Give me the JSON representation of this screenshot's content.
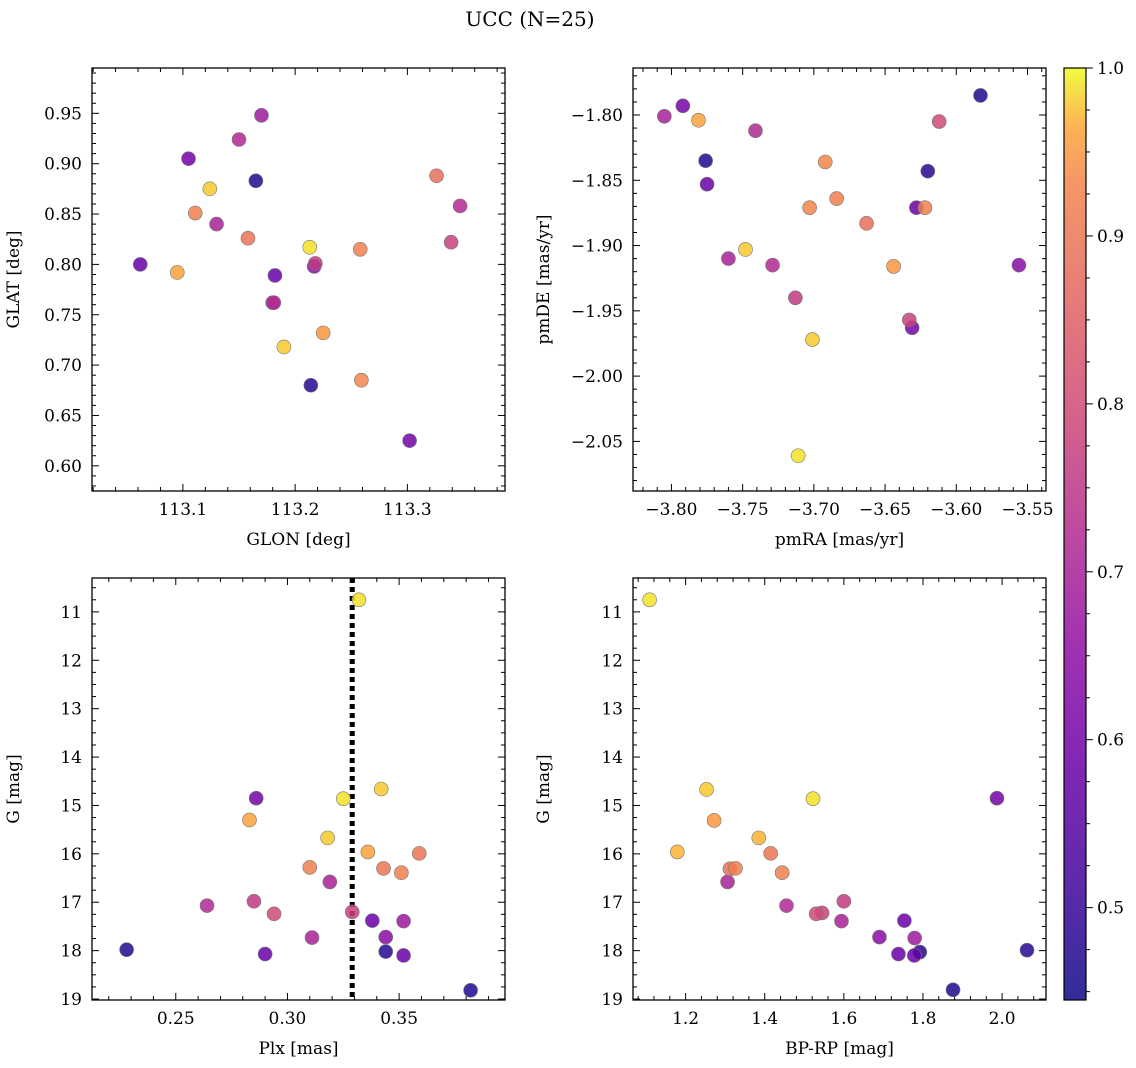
{
  "figure": {
    "title": "UCC (N=25)"
  },
  "colorbar": {
    "colormap": "plasma",
    "range": [
      0.445,
      1.0
    ],
    "ticks": [
      0.5,
      0.6,
      0.7,
      0.8,
      0.9,
      1.0
    ],
    "tick_labels": [
      "0.5",
      "0.6",
      "0.7",
      "0.8",
      "0.9",
      "1.0"
    ]
  },
  "chart_data": [
    {
      "type": "scatter",
      "name": "galactic-position",
      "xlabel": "GLON [deg]",
      "ylabel": "GLAT [deg]",
      "xlim": [
        113.019,
        113.387
      ],
      "ylim": [
        0.575,
        0.995
      ],
      "y_inverted": false,
      "xticks": [
        113.1,
        113.2,
        113.3
      ],
      "xtick_labels": [
        "113.1",
        "113.2",
        "113.3"
      ],
      "yticks": [
        0.6,
        0.65,
        0.7,
        0.75,
        0.8,
        0.85,
        0.9,
        0.95
      ],
      "ytick_labels": [
        "0.60",
        "0.65",
        "0.70",
        "0.75",
        "0.80",
        "0.85",
        "0.90",
        "0.95"
      ],
      "points": [
        {
          "x": 113.062,
          "y": 0.8,
          "c": 0.58
        },
        {
          "x": 113.095,
          "y": 0.792,
          "c": 0.96
        },
        {
          "x": 113.105,
          "y": 0.905,
          "c": 0.6
        },
        {
          "x": 113.111,
          "y": 0.851,
          "c": 0.92
        },
        {
          "x": 113.124,
          "y": 0.875,
          "c": 0.98
        },
        {
          "x": 113.13,
          "y": 0.84,
          "c": 0.7
        },
        {
          "x": 113.15,
          "y": 0.924,
          "c": 0.72
        },
        {
          "x": 113.158,
          "y": 0.826,
          "c": 0.9
        },
        {
          "x": 113.165,
          "y": 0.883,
          "c": 0.47
        },
        {
          "x": 113.17,
          "y": 0.948,
          "c": 0.68
        },
        {
          "x": 113.18,
          "y": 0.762,
          "c": 0.7
        },
        {
          "x": 113.181,
          "y": 0.762,
          "c": 0.72
        },
        {
          "x": 113.182,
          "y": 0.789,
          "c": 0.58
        },
        {
          "x": 113.19,
          "y": 0.718,
          "c": 0.98
        },
        {
          "x": 113.213,
          "y": 0.817,
          "c": 0.99
        },
        {
          "x": 113.214,
          "y": 0.68,
          "c": 0.48
        },
        {
          "x": 113.218,
          "y": 0.801,
          "c": 0.76
        },
        {
          "x": 113.217,
          "y": 0.798,
          "c": 0.64
        },
        {
          "x": 113.225,
          "y": 0.732,
          "c": 0.95
        },
        {
          "x": 113.258,
          "y": 0.815,
          "c": 0.92
        },
        {
          "x": 113.259,
          "y": 0.685,
          "c": 0.93
        },
        {
          "x": 113.302,
          "y": 0.625,
          "c": 0.6
        },
        {
          "x": 113.326,
          "y": 0.888,
          "c": 0.88
        },
        {
          "x": 113.339,
          "y": 0.822,
          "c": 0.78
        },
        {
          "x": 113.347,
          "y": 0.858,
          "c": 0.72
        }
      ]
    },
    {
      "type": "scatter",
      "name": "proper-motion",
      "xlabel": "pmRA [mas/yr]",
      "ylabel": "pmDE [mas/yr]",
      "xlim": [
        -3.827,
        -3.537
      ],
      "ylim": [
        -2.088,
        -1.764
      ],
      "y_inverted": false,
      "xticks": [
        -3.8,
        -3.75,
        -3.7,
        -3.65,
        -3.6,
        -3.55
      ],
      "xtick_labels": [
        "−3.80",
        "−3.75",
        "−3.70",
        "−3.65",
        "−3.60",
        "−3.55"
      ],
      "yticks": [
        -2.05,
        -2.0,
        -1.95,
        -1.9,
        -1.85,
        -1.8
      ],
      "ytick_labels": [
        "−2.05",
        "−2.00",
        "−1.95",
        "−1.90",
        "−1.85",
        "−1.80"
      ],
      "points": [
        {
          "x": -3.805,
          "y": -1.801,
          "c": 0.7
        },
        {
          "x": -3.792,
          "y": -1.793,
          "c": 0.6
        },
        {
          "x": -3.781,
          "y": -1.804,
          "c": 0.96
        },
        {
          "x": -3.776,
          "y": -1.835,
          "c": 0.47
        },
        {
          "x": -3.775,
          "y": -1.853,
          "c": 0.58
        },
        {
          "x": -3.76,
          "y": -1.91,
          "c": 0.7
        },
        {
          "x": -3.748,
          "y": -1.903,
          "c": 0.98
        },
        {
          "x": -3.741,
          "y": -1.812,
          "c": 0.72
        },
        {
          "x": -3.729,
          "y": -1.915,
          "c": 0.72
        },
        {
          "x": -3.713,
          "y": -1.94,
          "c": 0.76
        },
        {
          "x": -3.711,
          "y": -2.061,
          "c": 0.99
        },
        {
          "x": -3.703,
          "y": -1.871,
          "c": 0.93
        },
        {
          "x": -3.701,
          "y": -1.972,
          "c": 0.98
        },
        {
          "x": -3.692,
          "y": -1.836,
          "c": 0.93
        },
        {
          "x": -3.684,
          "y": -1.864,
          "c": 0.92
        },
        {
          "x": -3.663,
          "y": -1.883,
          "c": 0.88
        },
        {
          "x": -3.644,
          "y": -1.916,
          "c": 0.95
        },
        {
          "x": -3.633,
          "y": -1.957,
          "c": 0.78
        },
        {
          "x": -3.631,
          "y": -1.963,
          "c": 0.6
        },
        {
          "x": -3.628,
          "y": -1.871,
          "c": 0.58
        },
        {
          "x": -3.622,
          "y": -1.871,
          "c": 0.92
        },
        {
          "x": -3.62,
          "y": -1.843,
          "c": 0.48
        },
        {
          "x": -3.612,
          "y": -1.805,
          "c": 0.8
        },
        {
          "x": -3.583,
          "y": -1.785,
          "c": 0.47
        },
        {
          "x": -3.556,
          "y": -1.915,
          "c": 0.64
        }
      ]
    },
    {
      "type": "scatter",
      "name": "parallax-magnitude",
      "xlabel": "Plx [mas]",
      "ylabel": "G [mag]",
      "xlim": [
        0.2125,
        0.3974
      ],
      "ylim": [
        19.02,
        10.3
      ],
      "y_inverted": true,
      "xticks": [
        0.25,
        0.3,
        0.35
      ],
      "xtick_labels": [
        "0.25",
        "0.30",
        "0.35"
      ],
      "yticks": [
        11,
        12,
        13,
        14,
        15,
        16,
        17,
        18,
        19
      ],
      "ytick_labels": [
        "11",
        "12",
        "13",
        "14",
        "15",
        "16",
        "17",
        "18",
        "19"
      ],
      "vline": {
        "x": 0.329,
        "style": "dotted"
      },
      "points": [
        {
          "x": 0.228,
          "y": 17.98,
          "c": 0.47
        },
        {
          "x": 0.264,
          "y": 17.07,
          "c": 0.72
        },
        {
          "x": 0.283,
          "y": 15.3,
          "c": 0.96
        },
        {
          "x": 0.285,
          "y": 16.98,
          "c": 0.76
        },
        {
          "x": 0.286,
          "y": 14.85,
          "c": 0.6
        },
        {
          "x": 0.29,
          "y": 18.07,
          "c": 0.58
        },
        {
          "x": 0.294,
          "y": 17.24,
          "c": 0.8
        },
        {
          "x": 0.31,
          "y": 16.28,
          "c": 0.92
        },
        {
          "x": 0.311,
          "y": 17.73,
          "c": 0.7
        },
        {
          "x": 0.318,
          "y": 15.67,
          "c": 0.98
        },
        {
          "x": 0.319,
          "y": 16.58,
          "c": 0.7
        },
        {
          "x": 0.325,
          "y": 14.86,
          "c": 0.99
        },
        {
          "x": 0.329,
          "y": 17.2,
          "c": 0.78
        },
        {
          "x": 0.332,
          "y": 10.75,
          "c": 0.99
        },
        {
          "x": 0.336,
          "y": 15.96,
          "c": 0.96
        },
        {
          "x": 0.338,
          "y": 17.38,
          "c": 0.58
        },
        {
          "x": 0.342,
          "y": 14.66,
          "c": 0.98
        },
        {
          "x": 0.343,
          "y": 16.3,
          "c": 0.9
        },
        {
          "x": 0.344,
          "y": 17.72,
          "c": 0.64
        },
        {
          "x": 0.344,
          "y": 18.02,
          "c": 0.48
        },
        {
          "x": 0.351,
          "y": 16.39,
          "c": 0.92
        },
        {
          "x": 0.352,
          "y": 17.39,
          "c": 0.68
        },
        {
          "x": 0.352,
          "y": 18.1,
          "c": 0.58
        },
        {
          "x": 0.359,
          "y": 15.99,
          "c": 0.9
        },
        {
          "x": 0.382,
          "y": 18.82,
          "c": 0.47
        }
      ]
    },
    {
      "type": "scatter",
      "name": "color-magnitude",
      "xlabel": "BP-RP [mag]",
      "ylabel": "G [mag]",
      "xlim": [
        1.067,
        2.111
      ],
      "ylim": [
        19.02,
        10.3
      ],
      "y_inverted": true,
      "xticks": [
        1.2,
        1.4,
        1.6,
        1.8,
        2.0
      ],
      "xtick_labels": [
        "1.2",
        "1.4",
        "1.6",
        "1.8",
        "2.0"
      ],
      "yticks": [
        11,
        12,
        13,
        14,
        15,
        16,
        17,
        18,
        19
      ],
      "ytick_labels": [
        "11",
        "12",
        "13",
        "14",
        "15",
        "16",
        "17",
        "18",
        "19"
      ],
      "points": [
        {
          "x": 1.109,
          "y": 10.75,
          "c": 0.99
        },
        {
          "x": 1.179,
          "y": 15.96,
          "c": 0.97
        },
        {
          "x": 1.253,
          "y": 14.67,
          "c": 0.98
        },
        {
          "x": 1.272,
          "y": 15.31,
          "c": 0.95
        },
        {
          "x": 1.306,
          "y": 16.58,
          "c": 0.7
        },
        {
          "x": 1.312,
          "y": 16.31,
          "c": 0.88
        },
        {
          "x": 1.326,
          "y": 16.3,
          "c": 0.92
        },
        {
          "x": 1.385,
          "y": 15.67,
          "c": 0.97
        },
        {
          "x": 1.415,
          "y": 15.99,
          "c": 0.9
        },
        {
          "x": 1.444,
          "y": 16.39,
          "c": 0.92
        },
        {
          "x": 1.455,
          "y": 17.07,
          "c": 0.72
        },
        {
          "x": 1.522,
          "y": 14.86,
          "c": 0.99
        },
        {
          "x": 1.53,
          "y": 17.24,
          "c": 0.8
        },
        {
          "x": 1.545,
          "y": 17.22,
          "c": 0.78
        },
        {
          "x": 1.594,
          "y": 17.39,
          "c": 0.7
        },
        {
          "x": 1.6,
          "y": 16.98,
          "c": 0.76
        },
        {
          "x": 1.69,
          "y": 17.72,
          "c": 0.64
        },
        {
          "x": 1.738,
          "y": 18.07,
          "c": 0.58
        },
        {
          "x": 1.753,
          "y": 17.38,
          "c": 0.58
        },
        {
          "x": 1.779,
          "y": 17.74,
          "c": 0.68
        },
        {
          "x": 1.778,
          "y": 18.1,
          "c": 0.58
        },
        {
          "x": 1.792,
          "y": 18.03,
          "c": 0.48
        },
        {
          "x": 1.876,
          "y": 18.81,
          "c": 0.47
        },
        {
          "x": 1.987,
          "y": 14.85,
          "c": 0.6
        },
        {
          "x": 2.063,
          "y": 17.99,
          "c": 0.48
        }
      ]
    }
  ]
}
